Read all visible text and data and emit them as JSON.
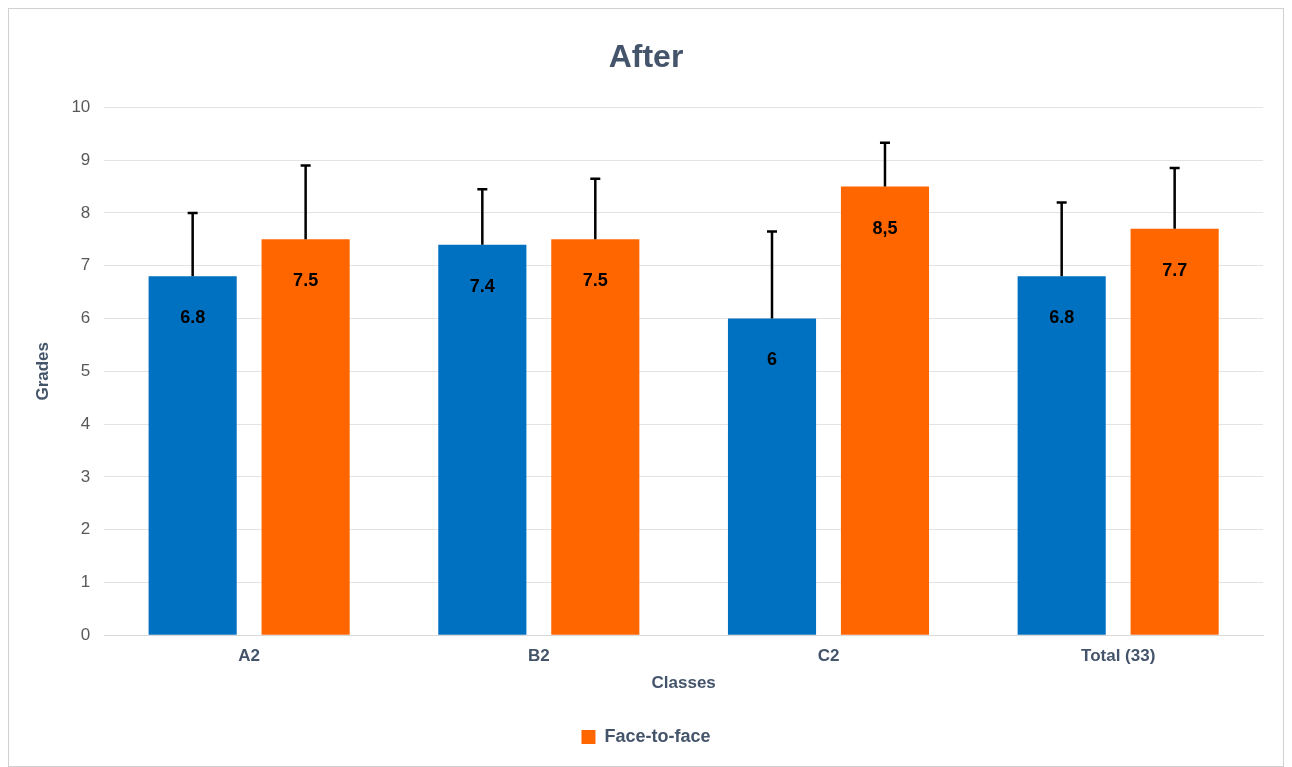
{
  "chart_data": {
    "type": "bar",
    "title": "After",
    "xlabel": "Classes",
    "ylabel": "Grades",
    "categories": [
      "A2",
      "B2",
      "C2",
      "Total (33)"
    ],
    "series": [
      {
        "color": "#0070c0",
        "values": [
          6.8,
          7.4,
          6,
          6.8
        ],
        "errors": [
          [
            6.8,
            8.0
          ],
          [
            7.4,
            8.45
          ],
          [
            6,
            7.65
          ],
          [
            6.8,
            8.2
          ]
        ],
        "value_labels": [
          "6.8",
          "7.4",
          "6",
          "6.8"
        ]
      },
      {
        "name": "Face-to-face",
        "color": "#ff6600",
        "values": [
          7.5,
          7.5,
          8.5,
          7.7
        ],
        "errors": [
          [
            7.5,
            8.9
          ],
          [
            7.5,
            8.65
          ],
          [
            8.5,
            9.33
          ],
          [
            7.7,
            8.85
          ]
        ],
        "value_labels": [
          "7.5",
          "7.5",
          "8,5",
          "7.7"
        ]
      }
    ],
    "ylim": [
      0,
      10
    ],
    "yticks": [
      0,
      1,
      2,
      3,
      4,
      5,
      6,
      7,
      8,
      9,
      10
    ],
    "grid": "y",
    "legend": "bottom"
  }
}
